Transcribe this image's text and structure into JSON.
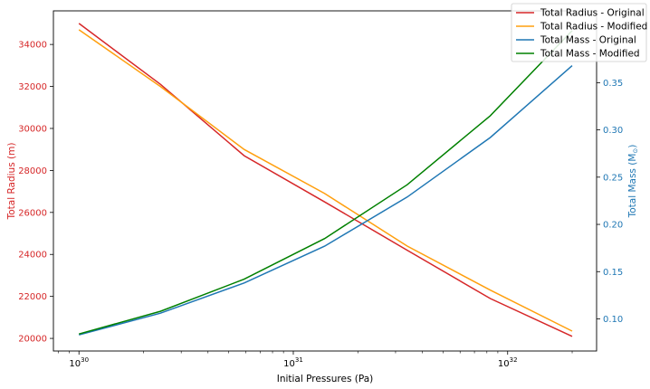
{
  "chart_data": {
    "type": "line",
    "xscale": "log",
    "xlabel": "Initial Pressures (Pa)",
    "xlim": [
      7.6e+29,
      2.6e+32
    ],
    "xticks": [
      {
        "value": 1e+30,
        "base": "10",
        "exp": "30"
      },
      {
        "value": 1e+31,
        "base": "10",
        "exp": "31"
      },
      {
        "value": 1e+32,
        "base": "10",
        "exp": "32"
      }
    ],
    "left_axis": {
      "label": "Total Radius (m)",
      "color": "#d62728",
      "lim": [
        19400,
        35600
      ],
      "ticks": [
        20000,
        22000,
        24000,
        26000,
        28000,
        30000,
        32000,
        34000
      ]
    },
    "right_axis": {
      "label_text": "Total Mass (M",
      "label_sub": "⊙",
      "label_close": ")",
      "color": "#1f77b4",
      "lim": [
        0.066,
        0.426
      ],
      "ticks": [
        "0.10",
        "0.15",
        "0.20",
        "0.25",
        "0.30",
        "0.35"
      ]
    },
    "grid": false,
    "legend_position": "top-right",
    "series": [
      {
        "name": "Total Radius - Original",
        "axis": "left",
        "color": "#d62728",
        "x": [
          1e+30,
          2.4e+30,
          5.9e+30,
          1.4e+31,
          3.4e+31,
          8.3e+31,
          2e+32
        ],
        "y": [
          35000,
          32100,
          28700,
          26500,
          24200,
          21900,
          20100
        ]
      },
      {
        "name": "Total Radius - Modified",
        "axis": "left",
        "color": "#ff9f0e",
        "x": [
          1e+30,
          2.4e+30,
          5.9e+30,
          1.4e+31,
          3.4e+31,
          8.3e+31,
          2e+32
        ],
        "y": [
          34700,
          32000,
          29000,
          26900,
          24400,
          22300,
          20350
        ]
      },
      {
        "name": "Total Mass - Original",
        "axis": "right",
        "color": "#1f77b4",
        "x": [
          1e+30,
          2.4e+30,
          5.9e+30,
          1.4e+31,
          3.4e+31,
          8.3e+31,
          2e+32
        ],
        "y": [
          0.083,
          0.106,
          0.138,
          0.177,
          0.229,
          0.292,
          0.368
        ]
      },
      {
        "name": "Total Mass - Modified",
        "axis": "right",
        "color": "#008000",
        "x": [
          1e+30,
          2.4e+30,
          5.9e+30,
          1.4e+31,
          3.4e+31,
          8.3e+31,
          2e+32
        ],
        "y": [
          0.084,
          0.108,
          0.142,
          0.185,
          0.242,
          0.315,
          0.405
        ]
      }
    ]
  }
}
